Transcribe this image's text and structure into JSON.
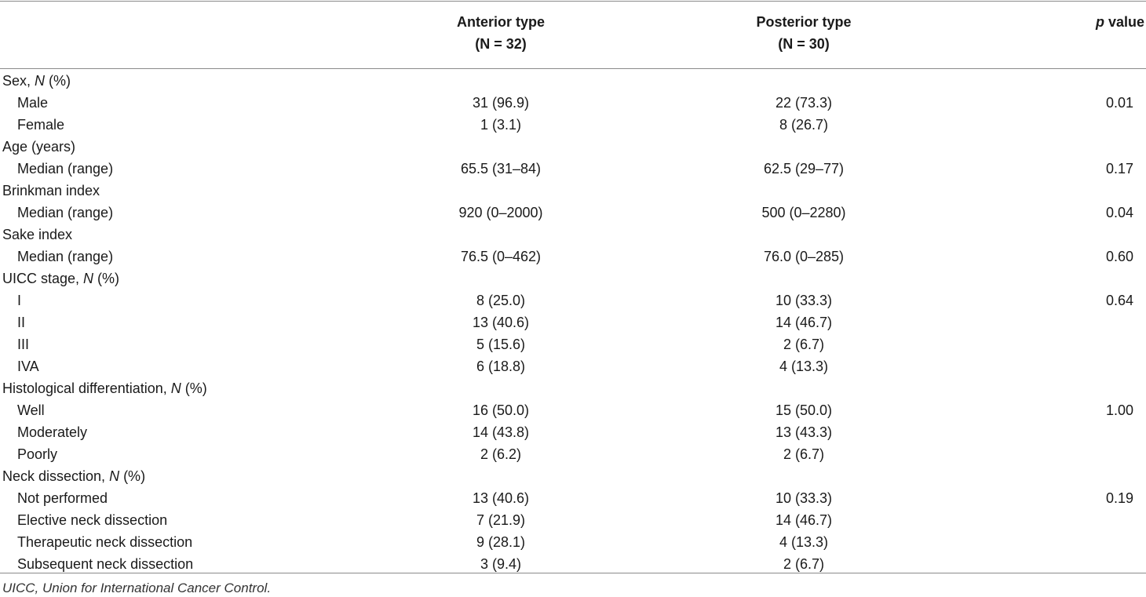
{
  "header": {
    "col1_name": "Anterior type",
    "col1_n": "(N = 32)",
    "col2_name": "Posterior type",
    "col2_n": "(N = 30)",
    "col3_italic": "p",
    "col3_rest": " value"
  },
  "rows": [
    {
      "label": "Sex, ",
      "label_italic": "N",
      "label_suffix": " (%)",
      "sub": false,
      "v1": "",
      "v2": "",
      "v3": ""
    },
    {
      "label": "Male",
      "sub": true,
      "v1": "31 (96.9)",
      "v2": "22 (73.3)",
      "v3": "0.01"
    },
    {
      "label": "Female",
      "sub": true,
      "v1": "1 (3.1)",
      "v2": "8 (26.7)",
      "v3": ""
    },
    {
      "label": "Age (years)",
      "sub": false,
      "v1": "",
      "v2": "",
      "v3": ""
    },
    {
      "label": "Median (range)",
      "sub": true,
      "v1": "65.5 (31–84)",
      "v2": "62.5 (29–77)",
      "v3": "0.17"
    },
    {
      "label": "Brinkman index",
      "sub": false,
      "v1": "",
      "v2": "",
      "v3": ""
    },
    {
      "label": "Median (range)",
      "sub": true,
      "v1": "920 (0–2000)",
      "v2": "500 (0–2280)",
      "v3": "0.04"
    },
    {
      "label": "Sake index",
      "sub": false,
      "v1": "",
      "v2": "",
      "v3": ""
    },
    {
      "label": "Median (range)",
      "sub": true,
      "v1": "76.5 (0–462)",
      "v2": "76.0 (0–285)",
      "v3": "0.60"
    },
    {
      "label": "UICC stage, ",
      "label_italic": "N",
      "label_suffix": " (%)",
      "sub": false,
      "v1": "",
      "v2": "",
      "v3": ""
    },
    {
      "label": "I",
      "sub": true,
      "v1": "8 (25.0)",
      "v2": "10 (33.3)",
      "v3": "0.64"
    },
    {
      "label": "II",
      "sub": true,
      "v1": "13 (40.6)",
      "v2": "14 (46.7)",
      "v3": ""
    },
    {
      "label": "III",
      "sub": true,
      "v1": "5 (15.6)",
      "v2": "2 (6.7)",
      "v3": ""
    },
    {
      "label": "IVA",
      "sub": true,
      "v1": "6 (18.8)",
      "v2": "4 (13.3)",
      "v3": ""
    },
    {
      "label": "Histological differentiation, ",
      "label_italic": "N",
      "label_suffix": " (%)",
      "sub": false,
      "v1": "",
      "v2": "",
      "v3": ""
    },
    {
      "label": "Well",
      "sub": true,
      "v1": "16 (50.0)",
      "v2": "15 (50.0)",
      "v3": "1.00"
    },
    {
      "label": "Moderately",
      "sub": true,
      "v1": "14 (43.8)",
      "v2": "13 (43.3)",
      "v3": ""
    },
    {
      "label": "Poorly",
      "sub": true,
      "v1": "2 (6.2)",
      "v2": "2 (6.7)",
      "v3": ""
    },
    {
      "label": "Neck dissection, ",
      "label_italic": "N",
      "label_suffix": " (%)",
      "sub": false,
      "v1": "",
      "v2": "",
      "v3": ""
    },
    {
      "label": "Not performed",
      "sub": true,
      "v1": "13 (40.6)",
      "v2": "10 (33.3)",
      "v3": "0.19"
    },
    {
      "label": "Elective neck dissection",
      "sub": true,
      "v1": "7 (21.9)",
      "v2": "14 (46.7)",
      "v3": ""
    },
    {
      "label": "Therapeutic neck dissection",
      "sub": true,
      "v1": "9 (28.1)",
      "v2": "4 (13.3)",
      "v3": ""
    },
    {
      "label": "Subsequent neck dissection",
      "sub": true,
      "v1": "3 (9.4)",
      "v2": "2 (6.7)",
      "v3": ""
    }
  ],
  "footnote": "UICC, Union for International Cancer Control."
}
